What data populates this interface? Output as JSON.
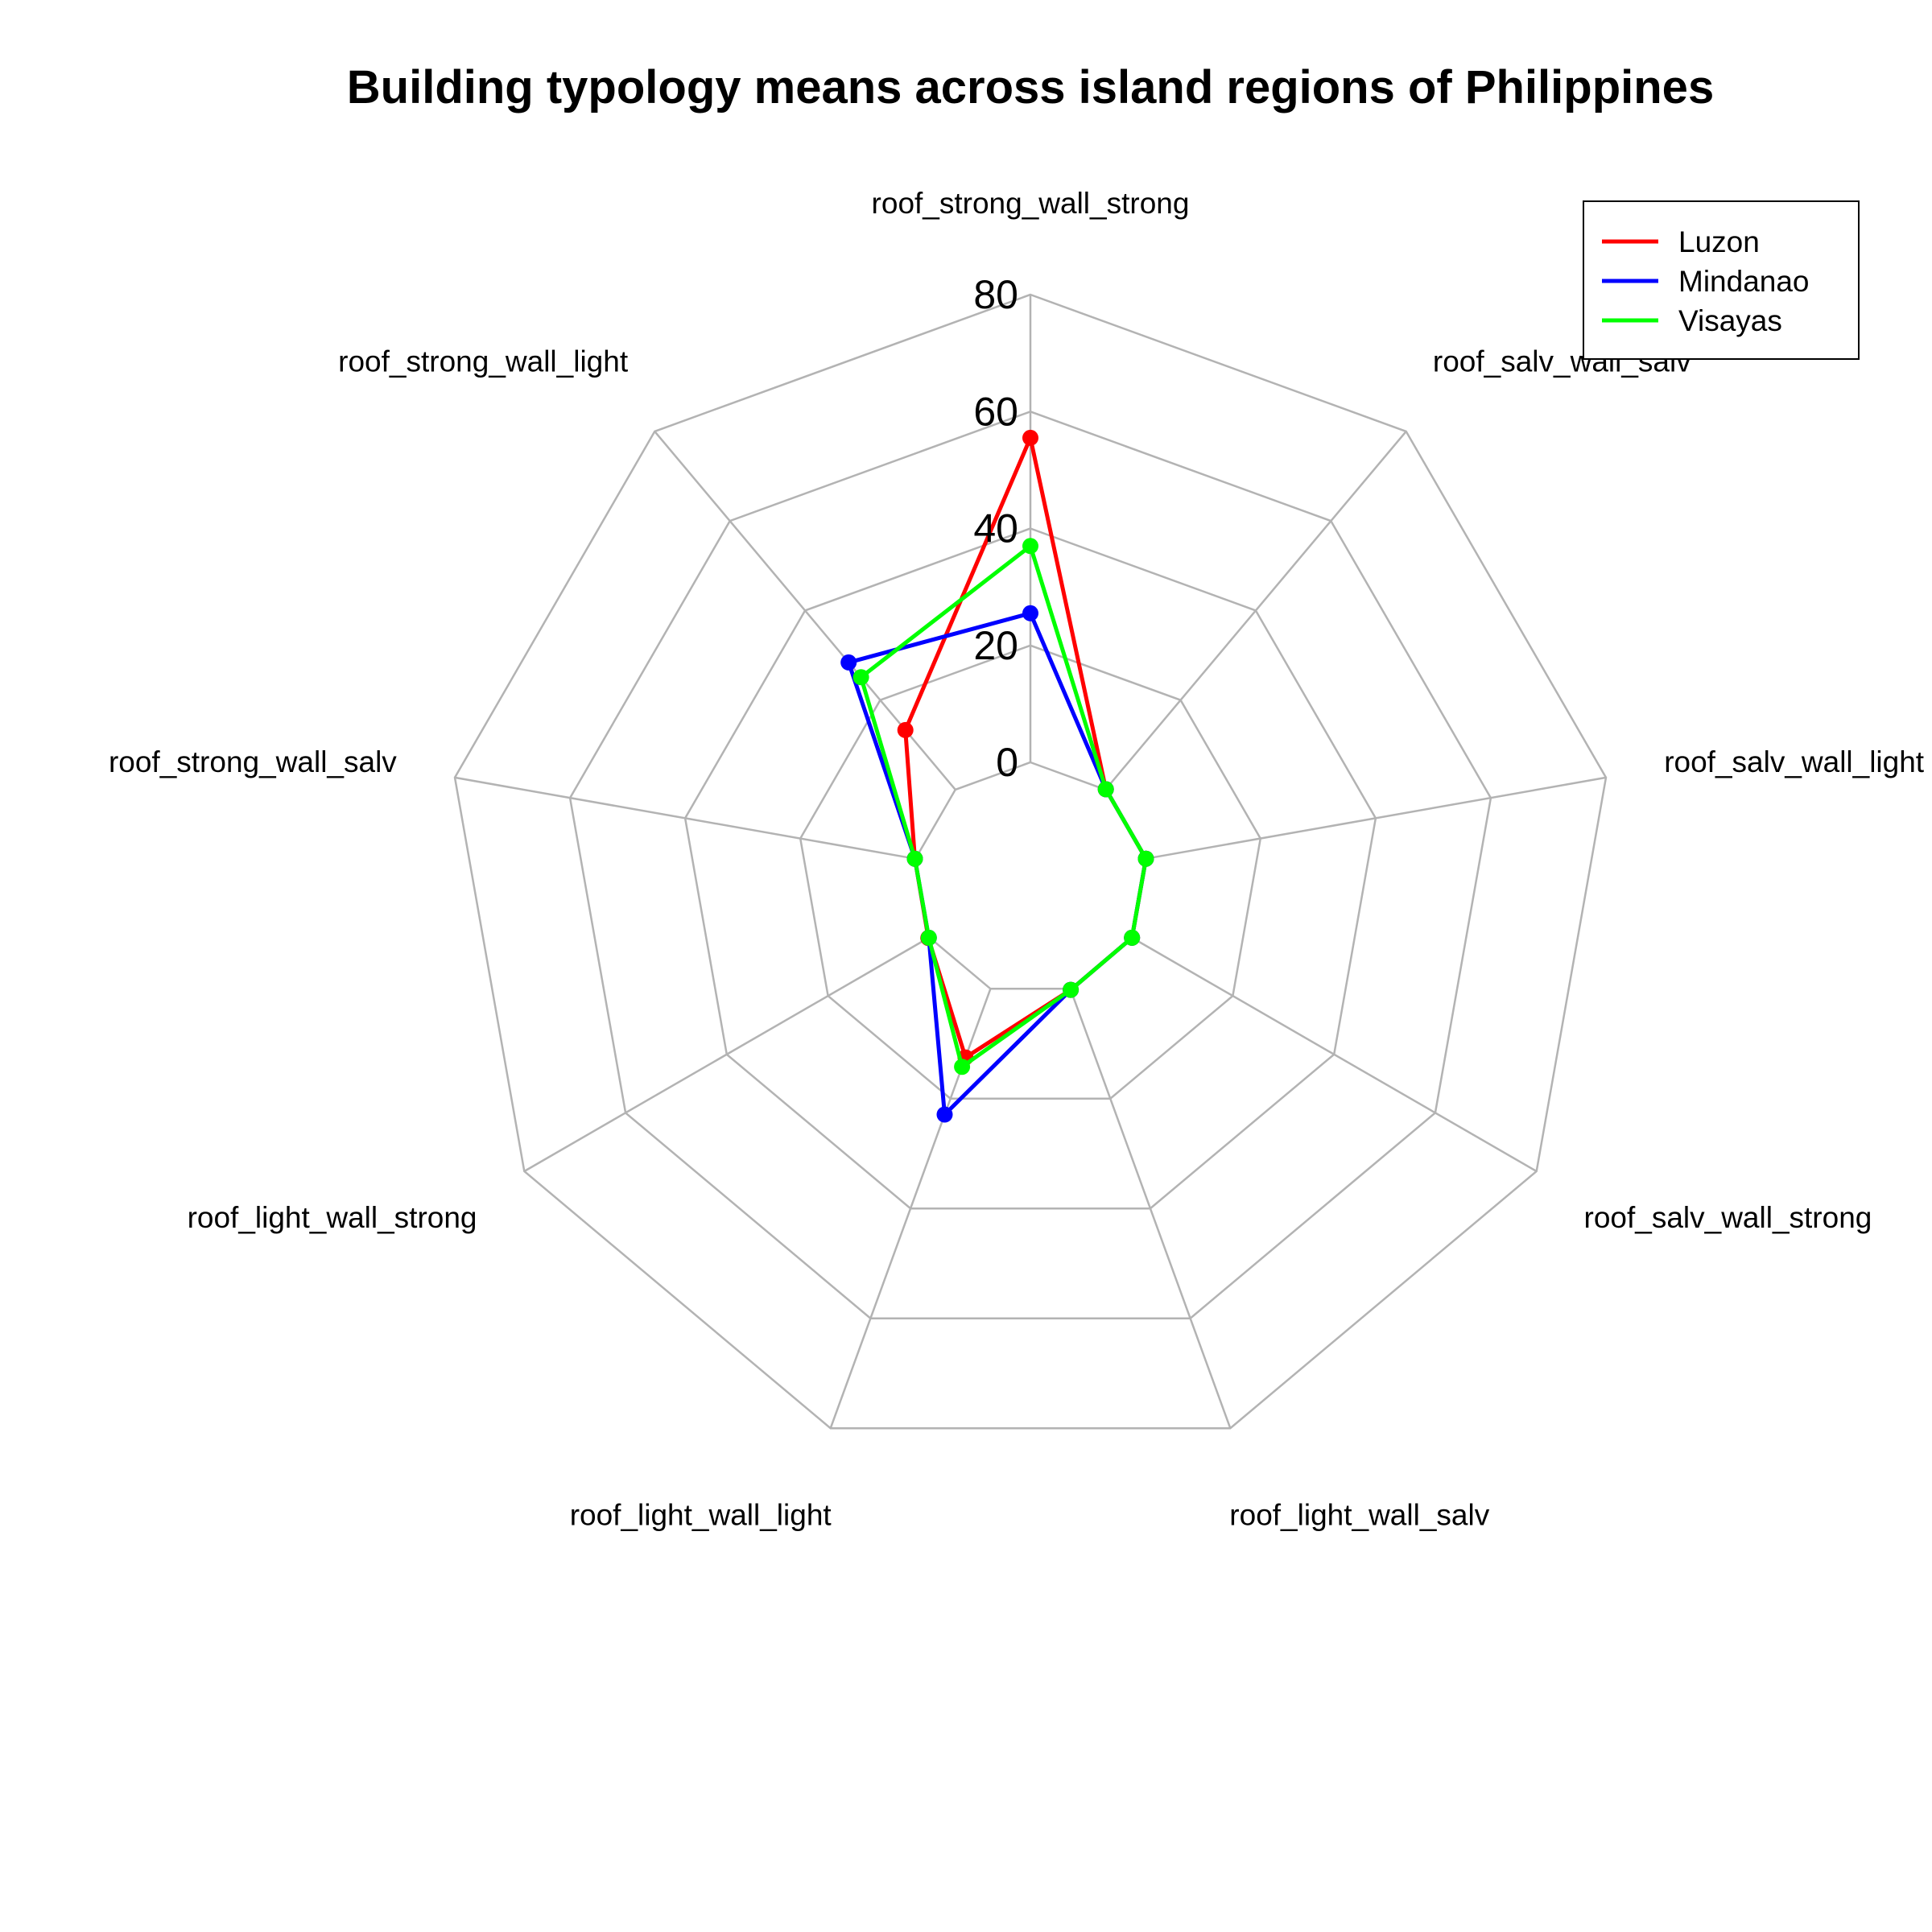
{
  "chart_data": {
    "type": "radar",
    "title": "Building typology means across island regions of Philippines",
    "axes": [
      "roof_strong_wall_strong",
      "roof_salv_wall_salv",
      "roof_salv_wall_light",
      "roof_salv_wall_strong",
      "roof_light_wall_salv",
      "roof_light_wall_light",
      "roof_light_wall_strong",
      "roof_strong_wall_salv",
      "roof_strong_wall_light"
    ],
    "r_ticks": [
      0,
      20,
      40,
      60,
      80
    ],
    "r_range": [
      0,
      80
    ],
    "center_offset": 0,
    "grid": true,
    "legend_position": "top-right",
    "series": [
      {
        "name": "Luzon",
        "color": "#ff0000",
        "values": [
          55.5,
          0.1,
          0.1,
          0.1,
          0.2,
          12.5,
          0.2,
          0.1,
          13.3
        ]
      },
      {
        "name": "Mindanao",
        "color": "#0000ff",
        "values": [
          25.5,
          0.1,
          0.1,
          0.1,
          0.2,
          22.9,
          0.1,
          0.1,
          28.4
        ]
      },
      {
        "name": "Visayas",
        "color": "#00ff00",
        "values": [
          37.0,
          0.1,
          0.1,
          0.1,
          0.2,
          14.2,
          0.1,
          0.1,
          25.1
        ]
      }
    ]
  }
}
